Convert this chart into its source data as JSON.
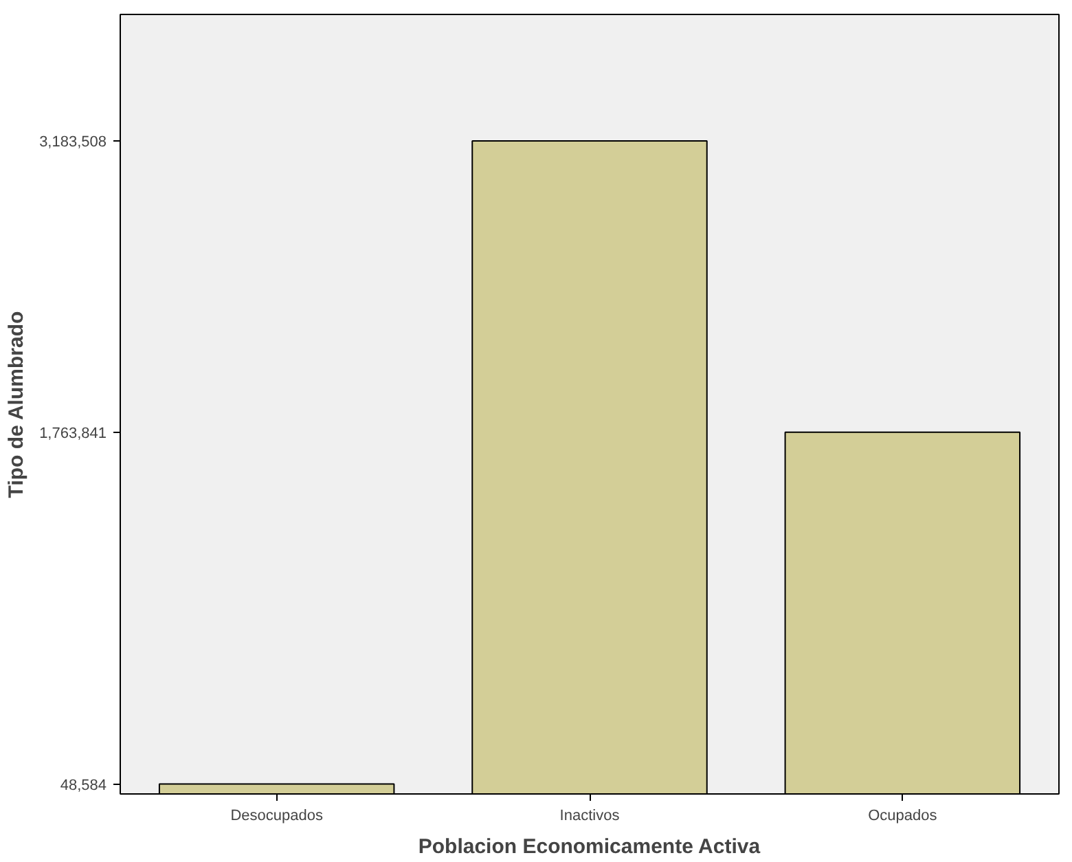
{
  "chart_data": {
    "type": "bar",
    "xlabel": "Poblacion Economicamente Activa",
    "ylabel": "Tipo de Alumbrado",
    "categories": [
      "Desocupados",
      "Inactivos",
      "Ocupados"
    ],
    "values": [
      48584,
      3183508,
      1763841
    ],
    "color": "#d3ce97",
    "ylim": [
      0,
      3800000
    ],
    "yticks": [
      {
        "value": 48584,
        "label": "48,584"
      },
      {
        "value": 1763841,
        "label": "1,763,841"
      },
      {
        "value": 3183508,
        "label": "3,183,508"
      }
    ],
    "grid": false
  }
}
